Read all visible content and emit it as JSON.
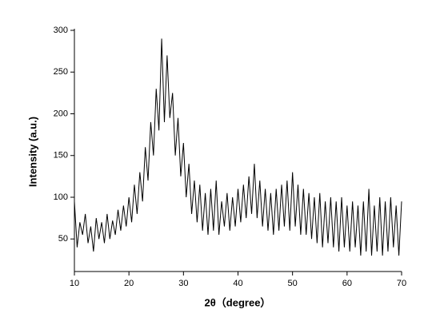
{
  "chart_data": {
    "type": "line",
    "x_label": "2θ（degree）",
    "y_label": "Intensity (a.u.)",
    "xlim": [
      10,
      70
    ],
    "xticks": [
      10,
      20,
      30,
      40,
      50,
      60,
      70
    ],
    "ylim": [
      11,
      300
    ],
    "yticks": [
      50,
      100,
      150,
      200,
      250,
      300
    ],
    "color": "#000000",
    "x": [
      10,
      10.5,
      11,
      11.5,
      12,
      12.5,
      13,
      13.5,
      14,
      14.5,
      15,
      15.5,
      16,
      16.5,
      17,
      17.5,
      18,
      18.5,
      19,
      19.5,
      20,
      20.5,
      21,
      21.5,
      22,
      22.5,
      23,
      23.5,
      24,
      24.5,
      25,
      25.5,
      26,
      26.5,
      27,
      27.5,
      28,
      28.5,
      29,
      29.5,
      30,
      30.5,
      31,
      31.5,
      32,
      32.5,
      33,
      33.5,
      34,
      34.5,
      35,
      35.5,
      36,
      36.5,
      37,
      37.5,
      38,
      38.5,
      39,
      39.5,
      40,
      40.5,
      41,
      41.5,
      42,
      42.5,
      43,
      43.5,
      44,
      44.5,
      45,
      45.5,
      46,
      46.5,
      47,
      47.5,
      48,
      48.5,
      49,
      49.5,
      50,
      50.5,
      51,
      51.5,
      52,
      52.5,
      53,
      53.5,
      54,
      54.5,
      55,
      55.5,
      56,
      56.5,
      57,
      57.5,
      58,
      58.5,
      59,
      59.5,
      60,
      60.5,
      61,
      61.5,
      62,
      62.5,
      63,
      63.5,
      64,
      64.5,
      65,
      65.5,
      66,
      66.5,
      67,
      67.5,
      68,
      68.5,
      69,
      69.5,
      70
    ],
    "values": [
      95,
      40,
      70,
      55,
      80,
      45,
      65,
      35,
      75,
      50,
      70,
      45,
      80,
      50,
      72,
      55,
      85,
      60,
      90,
      65,
      100,
      70,
      115,
      80,
      130,
      95,
      160,
      120,
      190,
      150,
      230,
      180,
      290,
      190,
      270,
      195,
      225,
      150,
      195,
      125,
      165,
      100,
      140,
      80,
      120,
      70,
      115,
      60,
      105,
      55,
      110,
      60,
      120,
      55,
      95,
      65,
      105,
      60,
      100,
      65,
      110,
      70,
      115,
      75,
      125,
      80,
      140,
      75,
      120,
      65,
      110,
      60,
      105,
      55,
      110,
      60,
      115,
      65,
      120,
      60,
      130,
      65,
      115,
      55,
      110,
      55,
      105,
      50,
      100,
      45,
      105,
      40,
      95,
      45,
      100,
      40,
      95,
      35,
      100,
      40,
      90,
      35,
      95,
      40,
      90,
      30,
      95,
      35,
      110,
      30,
      90,
      35,
      100,
      30,
      95,
      35,
      100,
      40,
      90,
      30,
      95
    ]
  }
}
